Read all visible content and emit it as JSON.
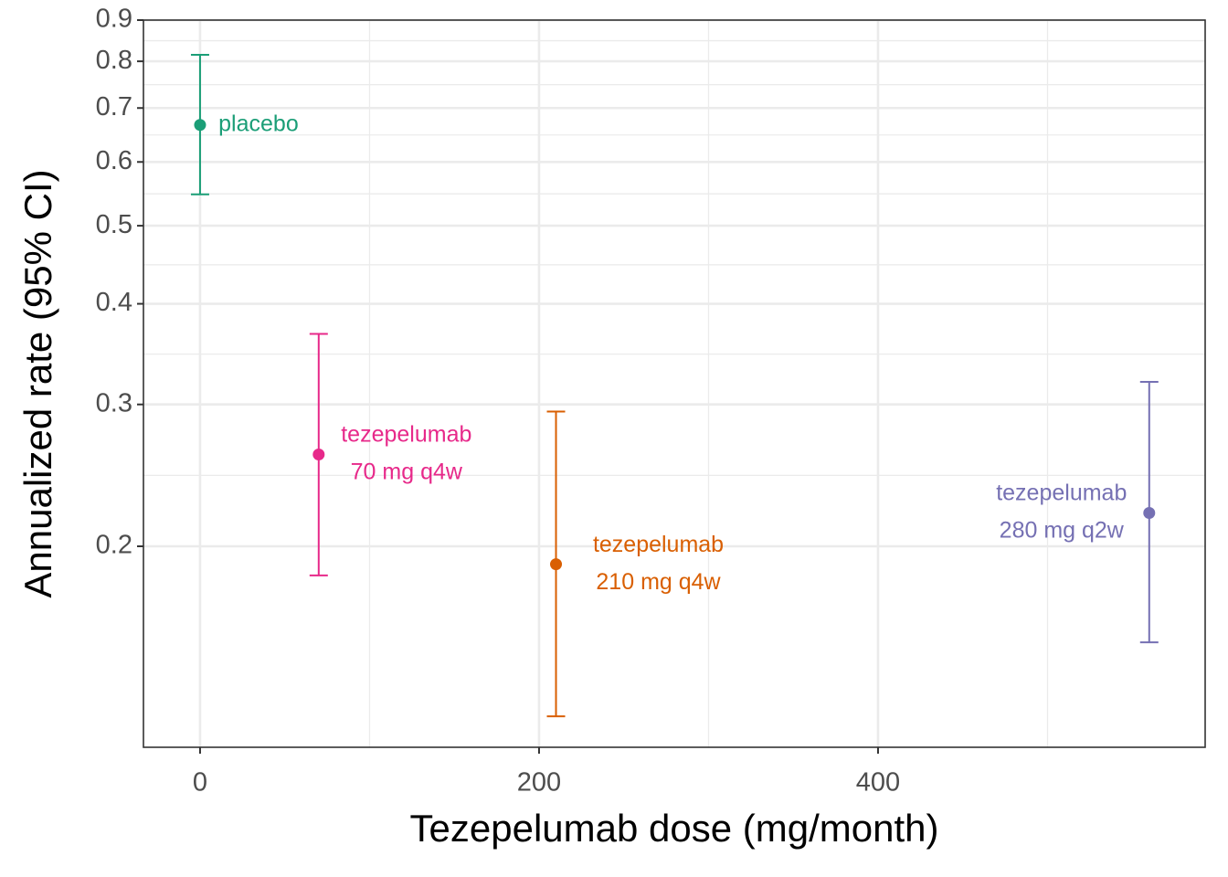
{
  "chart_data": {
    "type": "errorbar",
    "xlabel": "Tezepelumab dose (mg/month)",
    "ylabel": "Annualized rate (95% CI)",
    "xlim": [
      -33.4,
      593
    ],
    "xticks": [
      0,
      200,
      400
    ],
    "ylim": [
      0.1126,
      0.9
    ],
    "yticks": [
      0.2,
      0.3,
      0.4,
      0.5,
      0.6,
      0.7,
      0.8,
      0.9
    ],
    "ylog": true,
    "grid": true,
    "series": [
      {
        "label": [
          "placebo"
        ],
        "color": "#1b9e77",
        "x": [
          0
        ],
        "values": [
          0.667
        ],
        "lower": [
          0.547
        ],
        "upper": [
          0.815
        ]
      },
      {
        "label": [
          "tezepelumab",
          "70 mg q4w"
        ],
        "color": "#e7298a",
        "x": [
          70
        ],
        "values": [
          0.26
        ],
        "lower": [
          0.184
        ],
        "upper": [
          0.367
        ]
      },
      {
        "label": [
          "tezepelumab",
          "210 mg q4w"
        ],
        "color": "#d95f02",
        "x": [
          210
        ],
        "values": [
          0.19
        ],
        "lower": [
          0.123
        ],
        "upper": [
          0.294
        ]
      },
      {
        "label": [
          "tezepelumab",
          "280 mg q2w"
        ],
        "color": "#7570b3",
        "x": [
          560
        ],
        "values": [
          0.22
        ],
        "lower": [
          0.152
        ],
        "upper": [
          0.32
        ]
      }
    ]
  }
}
